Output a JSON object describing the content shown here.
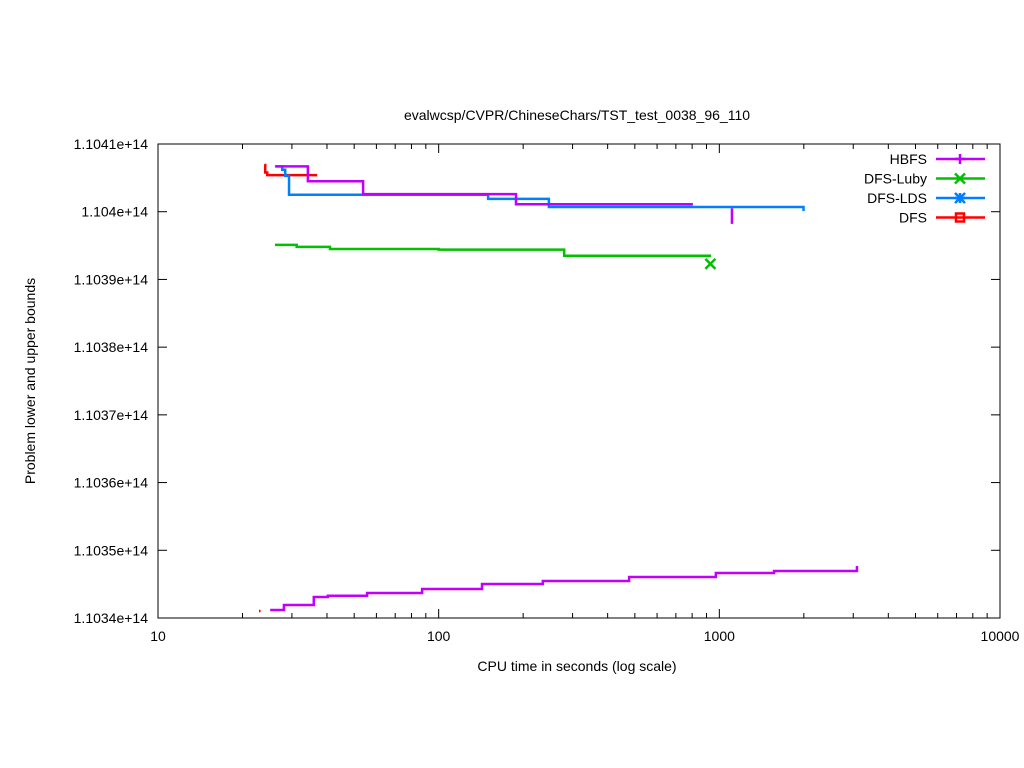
{
  "chart_data": {
    "type": "line",
    "title": "evalwcsp/CVPR/ChineseChars/TST_test_0038_96_110",
    "xlabel": "CPU time in seconds (log scale)",
    "ylabel": "Problem lower and upper bounds",
    "xscale": "log",
    "xlim": [
      10,
      10000
    ],
    "ylim": [
      110340000000000.0,
      110410000000000.0
    ],
    "xticks": [
      10,
      100,
      1000,
      10000
    ],
    "xtick_labels": [
      "10",
      "100",
      "1000",
      "10000"
    ],
    "yticks": [
      110340000000000.0,
      110350000000000.0,
      110360000000000.0,
      110370000000000.0,
      110380000000000.0,
      110390000000000.0,
      110400000000000.0,
      110410000000000.0
    ],
    "ytick_labels": [
      "1.1034e+14",
      "1.1035e+14",
      "1.1036e+14",
      "1.1037e+14",
      "1.1038e+14",
      "1.1039e+14",
      "1.104e+14",
      "1.1041e+14"
    ],
    "grid": false,
    "legend_position": "top-right",
    "series": [
      {
        "name": "HBFS",
        "color": "#c000ff",
        "marker": "plus",
        "upper": [
          [
            26.3,
            110406700000000.0
          ],
          [
            34.2,
            110404500000000.0
          ],
          [
            53.8,
            110402600000000.0
          ],
          [
            188.6,
            110401100000000.0
          ],
          [
            805,
            110401100000000.0
          ]
        ],
        "upper_end_mark": [
          [
            1109,
            110400500000000.0
          ],
          [
            1109,
            110398200000000.0
          ]
        ],
        "lower": [
          [
            25.1,
            110341180000000.0
          ],
          [
            28.1,
            110341920000000.0
          ],
          [
            35.9,
            110343100000000.0
          ],
          [
            40.3,
            110343290000000.0
          ],
          [
            55.6,
            110343690000000.0
          ],
          [
            87.3,
            110344280000000.0
          ],
          [
            142.7,
            110345020000000.0
          ],
          [
            235,
            110345460000000.0
          ],
          [
            477,
            110346060000000.0
          ],
          [
            972,
            110346650000000.0
          ],
          [
            1567,
            110346940000000.0
          ],
          [
            3093,
            110346940000000.0
          ],
          [
            3093,
            110347680000000.0
          ]
        ]
      },
      {
        "name": "DFS-Luby",
        "color": "#00c000",
        "marker": "cross",
        "upper": [
          [
            26.1,
            110395100000000.0
          ],
          [
            31.2,
            110394800000000.0
          ],
          [
            41.0,
            110394500000000.0
          ],
          [
            100,
            110394400000000.0
          ],
          [
            280,
            110393500000000.0
          ],
          [
            935,
            110393500000000.0
          ]
        ],
        "marker_point": [
          929,
          110392300000000.0
        ]
      },
      {
        "name": "DFS-LDS",
        "color": "#0080ff",
        "marker": "star",
        "upper": [
          [
            26.1,
            110406700000000.0
          ],
          [
            27.7,
            110406200000000.0
          ],
          [
            28.4,
            110405300000000.0
          ],
          [
            29.3,
            110402500000000.0
          ],
          [
            150,
            110401900000000.0
          ],
          [
            247,
            110400700000000.0
          ],
          [
            1987,
            110400700000000.0
          ],
          [
            1995,
            110400100000000.0
          ]
        ]
      },
      {
        "name": "DFS",
        "color": "#ff0000",
        "marker": "square",
        "upper": [
          [
            23.9,
            110406900000000.0
          ],
          [
            24.1,
            110405800000000.0
          ],
          [
            24.5,
            110405400000000.0
          ],
          [
            36.9,
            110405400000000.0
          ]
        ],
        "lower": [
          [
            22.9,
            110341030000000.0
          ],
          [
            23.2,
            110341030000000.0
          ]
        ]
      }
    ]
  }
}
